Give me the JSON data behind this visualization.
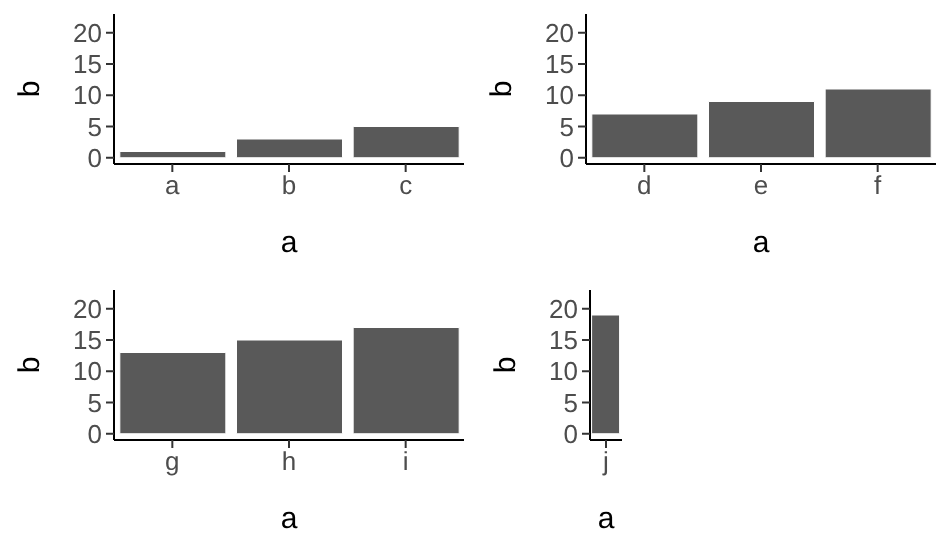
{
  "chart_data": [
    {
      "type": "bar",
      "xlabel": "a",
      "ylabel": "b",
      "categories": [
        "a",
        "b",
        "c"
      ],
      "values": [
        1,
        3,
        5
      ],
      "color": "#595959",
      "ylim": [
        -1,
        23
      ],
      "yticks": [
        0,
        5,
        10,
        15,
        20
      ],
      "grid": false,
      "legend": false
    },
    {
      "type": "bar",
      "xlabel": "a",
      "ylabel": "b",
      "categories": [
        "d",
        "e",
        "f"
      ],
      "values": [
        7,
        9,
        11
      ],
      "color": "#595959",
      "ylim": [
        -1,
        23
      ],
      "yticks": [
        0,
        5,
        10,
        15,
        20
      ],
      "grid": false,
      "legend": false
    },
    {
      "type": "bar",
      "xlabel": "a",
      "ylabel": "b",
      "categories": [
        "g",
        "h",
        "i"
      ],
      "values": [
        13,
        15,
        17
      ],
      "color": "#595959",
      "ylim": [
        -1,
        23
      ],
      "yticks": [
        0,
        5,
        10,
        15,
        20
      ],
      "grid": false,
      "legend": false
    },
    {
      "type": "bar",
      "xlabel": "a",
      "ylabel": "b",
      "categories": [
        "j"
      ],
      "values": [
        19
      ],
      "color": "#595959",
      "ylim": [
        -1,
        23
      ],
      "yticks": [
        0,
        5,
        10,
        15,
        20
      ],
      "grid": false,
      "legend": false
    }
  ]
}
